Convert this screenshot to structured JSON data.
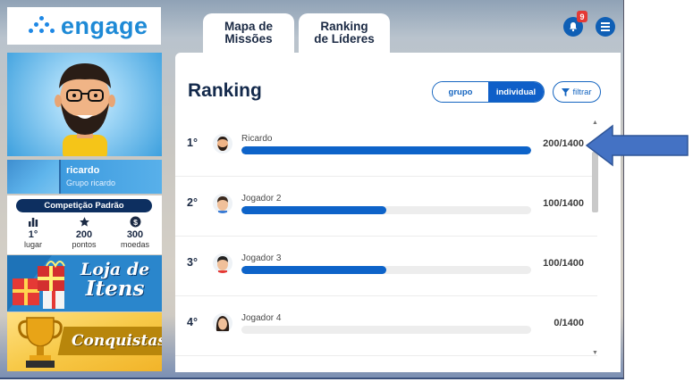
{
  "app": {
    "logo_text": "engage"
  },
  "tabs": [
    {
      "line1": "Mapa de",
      "line2": "Missões"
    },
    {
      "line1": "Ranking",
      "line2": "de Líderes"
    }
  ],
  "notifications": {
    "count": "9"
  },
  "user": {
    "name": "ricardo",
    "group": "Grupo ricardo"
  },
  "competition": {
    "title": "Competição Padrão",
    "stats": [
      {
        "value": "1°",
        "label": "lugar",
        "icon": "bar-chart-icon"
      },
      {
        "value": "200",
        "label": "pontos",
        "icon": "star-icon"
      },
      {
        "value": "300",
        "label": "moedas",
        "icon": "coin-icon"
      }
    ]
  },
  "promos": {
    "store": {
      "line1": "Loja de",
      "line2": "Itens"
    },
    "achievements": "Conquistas"
  },
  "ranking": {
    "title": "Ranking",
    "toggle": {
      "group": "grupo",
      "individual": "individual",
      "active": "individual"
    },
    "filter_label": "filtrar",
    "rows": [
      {
        "position": "1°",
        "name": "Ricardo",
        "score": "200/1400",
        "progress": 1.0,
        "avatar": "bearded"
      },
      {
        "position": "2°",
        "name": "Jogador 2",
        "score": "100/1400",
        "progress": 0.5,
        "avatar": "short-hair"
      },
      {
        "position": "3°",
        "name": "Jogador 3",
        "score": "100/1400",
        "progress": 0.5,
        "avatar": "short-hair"
      },
      {
        "position": "4°",
        "name": "Jogador 4",
        "score": "0/1400",
        "progress": 0.0,
        "avatar": "long-hair"
      }
    ]
  },
  "colors": {
    "brand": "#1e8ad6",
    "accent": "#0d63c9",
    "pointer_arrow": "#4472c4"
  }
}
